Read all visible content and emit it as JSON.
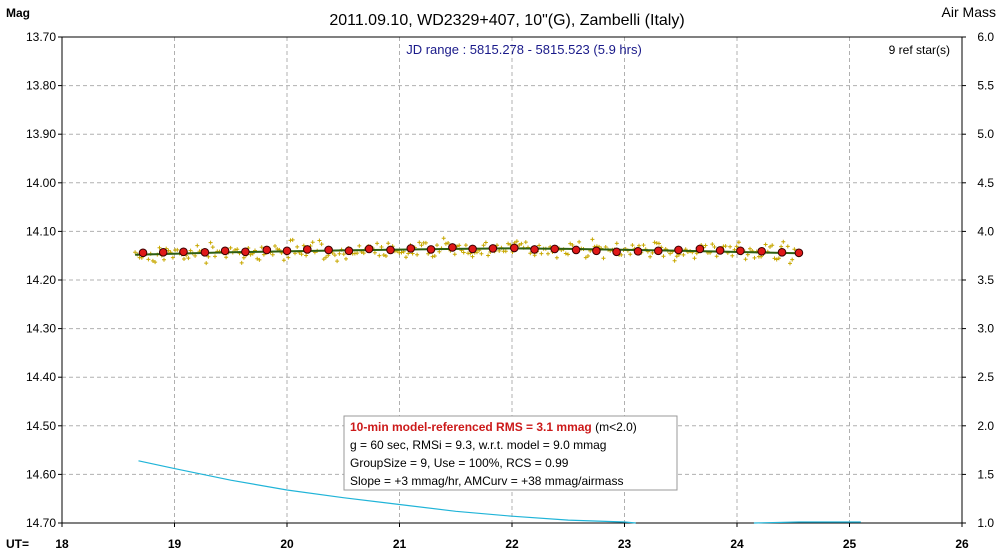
{
  "chart_data": {
    "type": "scatter",
    "title": "2011.09.10, WD2329+407, 10\"(G), Zambelli (Italy)",
    "y_left_label": "Mag",
    "y_right_label": "Air Mass",
    "x_label": "UT=",
    "subtitle": "JD range : 5815.278 - 5815.523 (5.9 hrs)",
    "ref_stars": "9 ref star(s)",
    "xlim": [
      18,
      26
    ],
    "x_ticks": [
      18,
      19,
      20,
      21,
      22,
      23,
      24,
      25,
      26
    ],
    "x_tick_labels": [
      "18",
      "19",
      "20",
      "21",
      "22",
      "23",
      "24",
      "25",
      "26"
    ],
    "ylim": [
      13.7,
      14.7
    ],
    "y_inverted": true,
    "y_ticks": [
      13.7,
      13.8,
      13.9,
      14.0,
      14.1,
      14.2,
      14.3,
      14.4,
      14.5,
      14.6,
      14.7
    ],
    "y_tick_labels": [
      "13.70",
      "13.80",
      "13.90",
      "14.00",
      "14.10",
      "14.20",
      "14.30",
      "14.40",
      "14.50",
      "14.60",
      "14.70"
    ],
    "y2lim": [
      1.0,
      6.0
    ],
    "y2_ticks": [
      1.0,
      1.5,
      2.0,
      2.5,
      3.0,
      3.5,
      4.0,
      4.5,
      5.0,
      5.5,
      6.0
    ],
    "y2_tick_labels": [
      "1.0",
      "1.5",
      "2.0",
      "2.5",
      "3.0",
      "3.5",
      "4.0",
      "4.5",
      "5.0",
      "5.5",
      "6.0"
    ],
    "grid": true,
    "colors": {
      "individual": "#c8a800",
      "binned_fill": "#e01818",
      "binned_stroke": "#3a0000",
      "model": "#2e5e10",
      "airmass": "#20b4d8",
      "grid": "#b0b0b0",
      "title": "#000000",
      "subtitle": "#1a1a8a",
      "info_highlight": "#cc1a1a"
    },
    "series": [
      {
        "role": "binned",
        "x": [
          18.72,
          18.9,
          19.08,
          19.27,
          19.45,
          19.63,
          19.82,
          20.0,
          20.18,
          20.37,
          20.55,
          20.73,
          20.92,
          21.1,
          21.28,
          21.47,
          21.65,
          21.83,
          22.02,
          22.2,
          22.38,
          22.57,
          22.75,
          22.93,
          23.12,
          23.3,
          23.48,
          23.67,
          23.85,
          24.03,
          24.22,
          24.4,
          24.55
        ],
        "y": [
          14.144,
          14.143,
          14.142,
          14.143,
          14.14,
          14.142,
          14.138,
          14.14,
          14.137,
          14.138,
          14.14,
          14.136,
          14.138,
          14.135,
          14.137,
          14.133,
          14.136,
          14.135,
          14.134,
          14.137,
          14.136,
          14.138,
          14.14,
          14.142,
          14.141,
          14.14,
          14.138,
          14.136,
          14.139,
          14.14,
          14.141,
          14.143,
          14.144
        ]
      },
      {
        "role": "model",
        "x": [
          18.65,
          19.5,
          20.5,
          21.5,
          22.0,
          22.5,
          23.5,
          24.55
        ],
        "y": [
          14.148,
          14.143,
          14.139,
          14.136,
          14.135,
          14.136,
          14.14,
          14.145
        ]
      },
      {
        "role": "airmass",
        "axis": "right",
        "x": [
          18.68,
          19.0,
          19.5,
          20.0,
          20.5,
          21.0,
          21.5,
          22.0,
          22.5,
          23.0,
          23.1
        ],
        "y": [
          1.64,
          1.56,
          1.44,
          1.34,
          1.26,
          1.19,
          1.12,
          1.07,
          1.03,
          1.01,
          1.0
        ]
      },
      {
        "role": "airmass",
        "axis": "right",
        "x": [
          24.15,
          24.55,
          25.1
        ],
        "y": [
          1.0,
          1.01,
          1.01
        ]
      }
    ]
  },
  "info_box": {
    "line1_bold": "10-min model-referenced RMS = 3.1 mmag",
    "line1_tail": " (m<2.0)",
    "line2": "g = 60 sec, RMSi = 9.3, w.r.t. model = 9.0 mmag",
    "line3": "GroupSize = 9, Use = 100%, RCS = 0.99",
    "line4": "Slope = +3 mmag/hr, AMCurv = +38 mmag/airmass"
  }
}
